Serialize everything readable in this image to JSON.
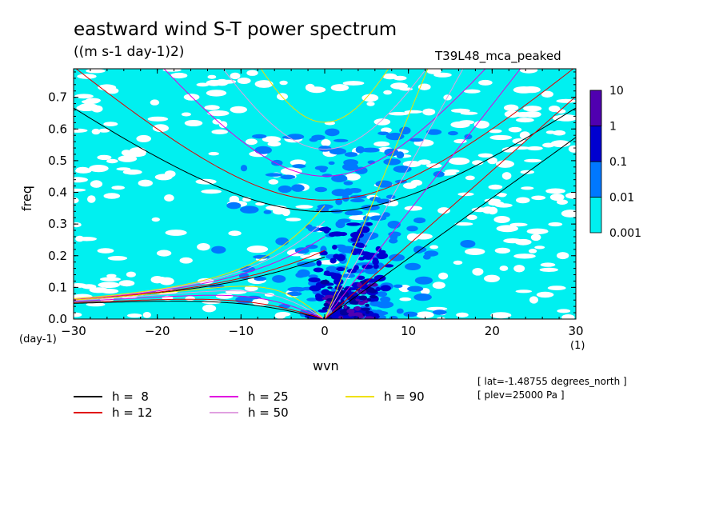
{
  "title": "eastward wind S-T power spectrum",
  "units": "((m s-1 day-1)2)",
  "model": "T39L48_mca_peaked",
  "xlabel": "wvn",
  "ylabel": "freq",
  "x_unit": "(1)",
  "y_unit": "(day-1)",
  "info": [
    "[ lat=-1.48755 degrees_north ]",
    "[ plev=25000 Pa ]"
  ],
  "colors": {
    "background_level": "#ffffff",
    "level_0.001": "#00f0f0",
    "level_0.01": "#0078ff",
    "level_0.1": "#0000d0",
    "level_1": "#00009a",
    "level_10": "#5000b0"
  },
  "chart_data": {
    "type": "heatmap",
    "title": "eastward wind S-T power spectrum",
    "xlabel": "wvn",
    "ylabel": "freq",
    "xlim": [
      -30,
      30
    ],
    "ylim": [
      0,
      0.79
    ],
    "x_ticks": [
      -30,
      -20,
      -10,
      0,
      10,
      20,
      30
    ],
    "y_ticks": [
      0.0,
      0.1,
      0.2,
      0.3,
      0.4,
      0.5,
      0.6,
      0.7
    ],
    "colorbar": {
      "levels": [
        0.001,
        0.01,
        0.1,
        1,
        10
      ],
      "labels": [
        "0.001",
        "0.01",
        "0.1",
        "1",
        "10"
      ]
    },
    "dispersion_curves": [
      {
        "name": "h = 8",
        "equivalent_depth": 8,
        "color": "#000000"
      },
      {
        "name": "h = 12",
        "equivalent_depth": 12,
        "color": "#e00000"
      },
      {
        "name": "h = 25",
        "equivalent_depth": 25,
        "color": "#e000e0"
      },
      {
        "name": "h = 50",
        "equivalent_depth": 50,
        "color": "#e0a0e0"
      },
      {
        "name": "h = 90",
        "equivalent_depth": 90,
        "color": "#f0e000"
      }
    ]
  },
  "legend": [
    {
      "label": "h =  8",
      "color": "#000000"
    },
    {
      "label": "h = 12",
      "color": "#e00000"
    },
    {
      "label": "h = 25",
      "color": "#e000e0"
    },
    {
      "label": "h = 50",
      "color": "#e0a0e0"
    },
    {
      "label": "h = 90",
      "color": "#f0e000"
    }
  ]
}
